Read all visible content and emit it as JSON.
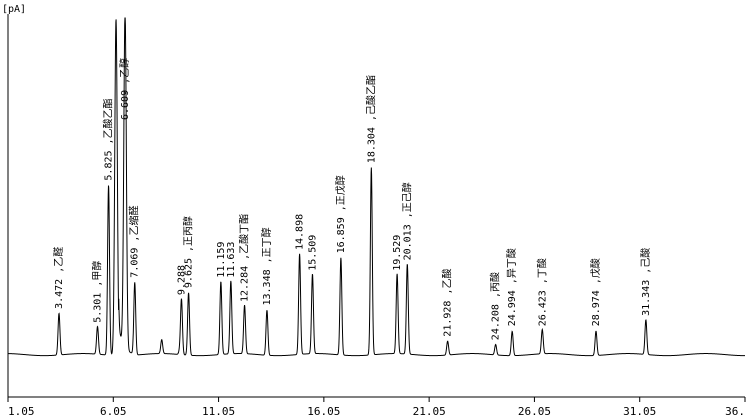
{
  "chart_data": {
    "type": "line",
    "ylabel": "[pA]",
    "xlabel": "",
    "xlim": [
      1.05,
      36.05
    ],
    "ylim": [
      0,
      100
    ],
    "xticks": [
      1.05,
      6.05,
      11.05,
      16.05,
      21.05,
      26.05,
      31.05,
      36.05
    ],
    "xtick_labels": [
      "1.05",
      "6.05",
      "11.05",
      "16.05",
      "21.05",
      "26.05",
      "31.05",
      "36."
    ],
    "baseline": 3,
    "peaks": [
      {
        "rt": 3.472,
        "height": 15,
        "label": "3.472 ,乙醛"
      },
      {
        "rt": 5.301,
        "height": 11,
        "label": "5.301 ,甲醇"
      },
      {
        "rt": 5.825,
        "height": 52,
        "label": "5.825 ,乙酸乙酯"
      },
      {
        "rt": 6.18,
        "height": 100,
        "label": ""
      },
      {
        "rt": 6.609,
        "height": 100,
        "label": "6.609 ,乙醇"
      },
      {
        "rt": 7.069,
        "height": 24,
        "label": "7.069 ,乙缩醛"
      },
      {
        "rt": 8.35,
        "height": 7,
        "label": ""
      },
      {
        "rt": 9.2,
        "height": 4,
        "label": ""
      },
      {
        "rt": 9.288,
        "height": 19,
        "label": "9.288"
      },
      {
        "rt": 9.625,
        "height": 21,
        "label": "9.625 ,正丙醇"
      },
      {
        "rt": 11.159,
        "height": 24,
        "label": "11.159"
      },
      {
        "rt": 11.633,
        "height": 24,
        "label": "11.633"
      },
      {
        "rt": 12.284,
        "height": 17,
        "label": "12.284 ,乙酸丁酯"
      },
      {
        "rt": 13.348,
        "height": 16,
        "label": "13.348 ,正丁醇"
      },
      {
        "rt": 14.898,
        "height": 32,
        "label": "14.898"
      },
      {
        "rt": 15.509,
        "height": 26,
        "label": "15.509"
      },
      {
        "rt": 16.859,
        "height": 31,
        "label": "16.859 ,正戊醇"
      },
      {
        "rt": 18.304,
        "height": 57,
        "label": "18.304 ,己酸乙酯"
      },
      {
        "rt": 19.529,
        "height": 26,
        "label": "19.529"
      },
      {
        "rt": 20.013,
        "height": 29,
        "label": "20.013 ,正己醇"
      },
      {
        "rt": 21.928,
        "height": 7,
        "label": "21.928 ,乙酸"
      },
      {
        "rt": 24.208,
        "height": 6,
        "label": "24.208 ,丙酸"
      },
      {
        "rt": 24.994,
        "height": 10,
        "label": "24.994 ,异丁酸"
      },
      {
        "rt": 26.423,
        "height": 10,
        "label": "26.423 ,丁酸"
      },
      {
        "rt": 28.974,
        "height": 10,
        "label": "28.974 ,戊酸"
      },
      {
        "rt": 31.343,
        "height": 13,
        "label": "31.343 ,己酸"
      }
    ]
  }
}
